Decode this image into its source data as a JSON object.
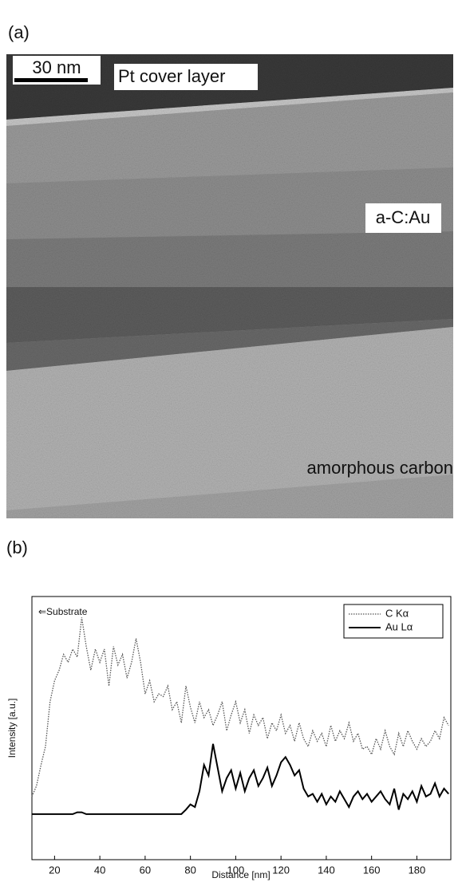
{
  "panel_a": {
    "label": "(a)",
    "scale_bar": "30 nm",
    "labels": [
      "Pt cover layer",
      "a-C:Au",
      "amorphous carbon"
    ]
  },
  "chart_data": {
    "type": "line",
    "panel_label": "(b)",
    "xlabel": "Distance [nm]",
    "ylabel": "Intensity [a.u.]",
    "annotation": "⇐Substrate",
    "xlim": [
      10,
      195
    ],
    "ylim": [
      0,
      10
    ],
    "xticks": [
      20,
      40,
      60,
      80,
      100,
      120,
      140,
      160,
      180
    ],
    "legend": "upper right",
    "x": [
      10,
      12,
      14,
      16,
      18,
      20,
      22,
      24,
      26,
      28,
      30,
      32,
      34,
      36,
      38,
      40,
      42,
      44,
      46,
      48,
      50,
      52,
      54,
      56,
      58,
      60,
      62,
      64,
      66,
      68,
      70,
      72,
      74,
      76,
      78,
      80,
      82,
      84,
      86,
      88,
      90,
      92,
      94,
      96,
      98,
      100,
      102,
      104,
      106,
      108,
      110,
      112,
      114,
      116,
      118,
      120,
      122,
      124,
      126,
      128,
      130,
      132,
      134,
      136,
      138,
      140,
      142,
      144,
      146,
      148,
      150,
      152,
      154,
      156,
      158,
      160,
      162,
      164,
      166,
      168,
      170,
      172,
      174,
      176,
      178,
      180,
      182,
      184,
      186,
      188,
      190,
      192,
      194
    ],
    "series": [
      {
        "name": "C Kα",
        "color": "#555555",
        "linestyle": "dotted",
        "values": [
          2.4,
          2.8,
          3.6,
          4.3,
          6.0,
          6.8,
          7.2,
          7.8,
          7.5,
          8.0,
          7.7,
          9.2,
          8.1,
          7.2,
          8.0,
          7.5,
          8.0,
          6.6,
          8.1,
          7.4,
          7.8,
          6.9,
          7.5,
          8.4,
          7.5,
          6.3,
          6.8,
          6.0,
          6.3,
          6.2,
          6.6,
          5.7,
          6.0,
          5.2,
          6.6,
          5.8,
          5.2,
          6.0,
          5.4,
          5.7,
          5.1,
          5.5,
          6.0,
          4.9,
          5.5,
          6.0,
          5.2,
          5.7,
          4.8,
          5.5,
          5.1,
          5.4,
          4.6,
          5.2,
          4.9,
          5.5,
          4.8,
          5.1,
          4.5,
          5.2,
          4.6,
          4.3,
          4.9,
          4.5,
          4.8,
          4.3,
          5.1,
          4.5,
          4.9,
          4.6,
          5.2,
          4.5,
          4.8,
          4.2,
          4.3,
          4.0,
          4.6,
          4.2,
          4.9,
          4.3,
          4.0,
          4.8,
          4.3,
          4.9,
          4.5,
          4.2,
          4.6,
          4.3,
          4.5,
          4.9,
          4.6,
          5.4,
          5.1
        ]
      },
      {
        "name": "Au Lα",
        "color": "#000000",
        "linestyle": "solid",
        "values": [
          1.73,
          1.73,
          1.73,
          1.73,
          1.73,
          1.73,
          1.73,
          1.73,
          1.73,
          1.73,
          1.8,
          1.8,
          1.73,
          1.73,
          1.73,
          1.73,
          1.73,
          1.73,
          1.73,
          1.73,
          1.73,
          1.73,
          1.73,
          1.73,
          1.73,
          1.73,
          1.73,
          1.73,
          1.73,
          1.73,
          1.73,
          1.73,
          1.73,
          1.73,
          1.9,
          2.1,
          2.0,
          2.6,
          3.6,
          3.2,
          4.4,
          3.5,
          2.6,
          3.1,
          3.4,
          2.7,
          3.3,
          2.6,
          3.1,
          3.4,
          2.8,
          3.1,
          3.5,
          2.8,
          3.2,
          3.7,
          3.9,
          3.6,
          3.2,
          3.4,
          2.7,
          2.4,
          2.5,
          2.2,
          2.5,
          2.1,
          2.4,
          2.2,
          2.6,
          2.3,
          2.0,
          2.4,
          2.6,
          2.3,
          2.5,
          2.2,
          2.4,
          2.6,
          2.3,
          2.1,
          2.7,
          1.9,
          2.5,
          2.3,
          2.6,
          2.2,
          2.8,
          2.4,
          2.5,
          2.9,
          2.4,
          2.7,
          2.5
        ]
      }
    ]
  }
}
